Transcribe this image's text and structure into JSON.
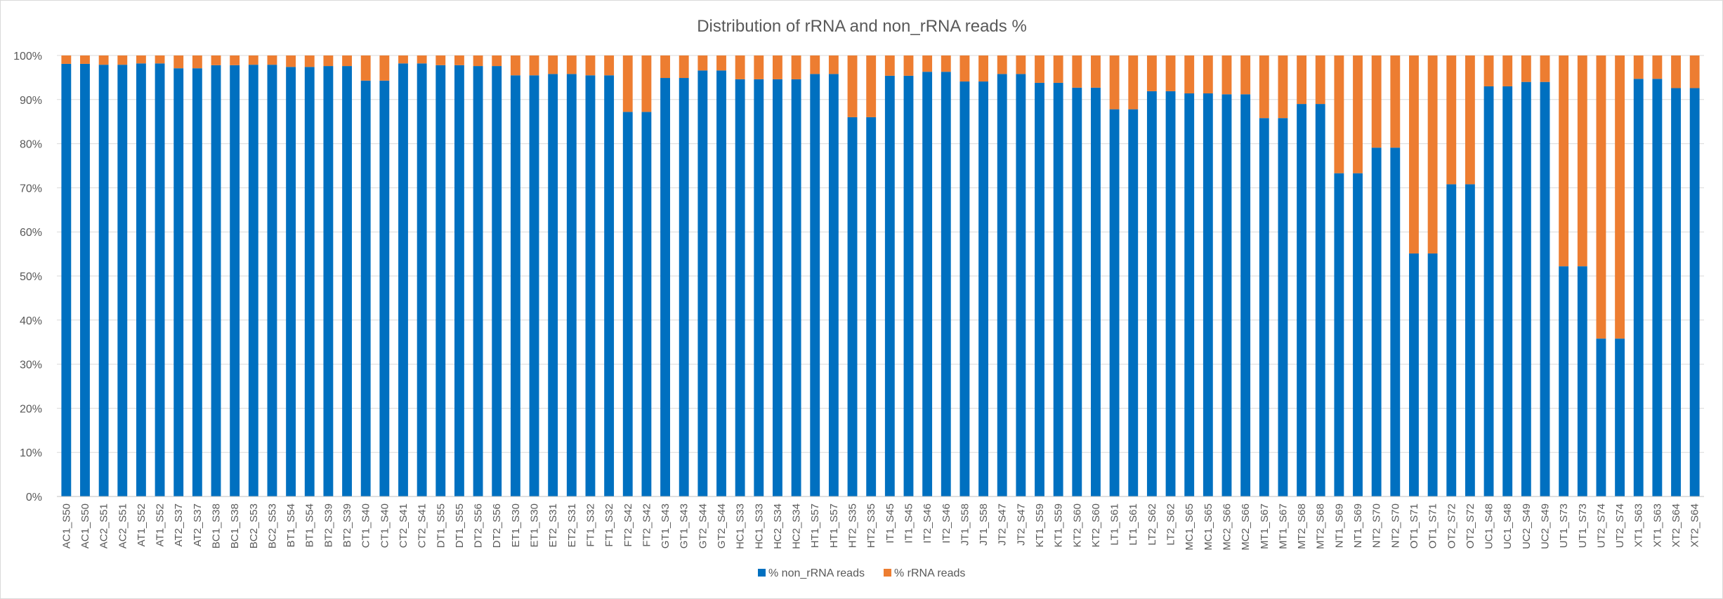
{
  "chart_data": {
    "type": "bar",
    "stacked": true,
    "title": "Distribution of rRNA and non_rRNA reads %",
    "xlabel": "",
    "ylabel": "",
    "ylim": [
      0,
      100
    ],
    "y_tick_labels": [
      "0%",
      "10%",
      "20%",
      "30%",
      "40%",
      "50%",
      "60%",
      "70%",
      "80%",
      "90%",
      "100%"
    ],
    "legend_position": "bottom",
    "grid": true,
    "categories": [
      "AC1_S50",
      "AC1_S50",
      "AC2_S51",
      "AC2_S51",
      "AT1_S52",
      "AT1_S52",
      "AT2_S37",
      "AT2_S37",
      "BC1_S38",
      "BC1_S38",
      "BC2_S53",
      "BC2_S53",
      "BT1_S54",
      "BT1_S54",
      "BT2_S39",
      "BT2_S39",
      "CT1_S40",
      "CT1_S40",
      "CT2_S41",
      "CT2_S41",
      "DT1_S55",
      "DT1_S55",
      "DT2_S56",
      "DT2_S56",
      "ET1_S30",
      "ET1_S30",
      "ET2_S31",
      "ET2_S31",
      "FT1_S32",
      "FT1_S32",
      "FT2_S42",
      "FT2_S42",
      "GT1_S43",
      "GT1_S43",
      "GT2_S44",
      "GT2_S44",
      "HC1_S33",
      "HC1_S33",
      "HC2_S34",
      "HC2_S34",
      "HT1_S57",
      "HT1_S57",
      "HT2_S35",
      "HT2_S35",
      "IT1_S45",
      "IT1_S45",
      "IT2_S46",
      "IT2_S46",
      "JT1_S58",
      "JT1_S58",
      "JT2_S47",
      "JT2_S47",
      "KT1_S59",
      "KT1_S59",
      "KT2_S60",
      "KT2_S60",
      "LT1_S61",
      "LT1_S61",
      "LT2_S62",
      "LT2_S62",
      "MC1_S65",
      "MC1_S65",
      "MC2_S66",
      "MC2_S66",
      "MT1_S67",
      "MT1_S67",
      "MT2_S68",
      "MT2_S68",
      "NT1_S69",
      "NT1_S69",
      "NT2_S70",
      "NT2_S70",
      "OT1_S71",
      "OT1_S71",
      "OT2_S72",
      "OT2_S72",
      "UC1_S48",
      "UC1_S48",
      "UC2_S49",
      "UC2_S49",
      "UT1_S73",
      "UT1_S73",
      "UT2_S74",
      "UT2_S74",
      "XT1_S63",
      "XT1_S63",
      "XT2_S64",
      "XT2_S64"
    ],
    "series": [
      {
        "name": "% non_rRNA reads",
        "color": "#0070c0",
        "values": [
          98.1,
          98.1,
          97.9,
          97.9,
          98.2,
          98.2,
          97.1,
          97.1,
          97.8,
          97.8,
          97.9,
          97.9,
          97.4,
          97.4,
          97.6,
          97.6,
          94.3,
          94.3,
          98.2,
          98.2,
          97.8,
          97.8,
          97.6,
          97.6,
          95.5,
          95.5,
          95.8,
          95.8,
          95.5,
          95.5,
          87.2,
          87.2,
          94.9,
          94.9,
          96.6,
          96.6,
          94.6,
          94.6,
          94.6,
          94.6,
          95.8,
          95.8,
          86.0,
          86.0,
          95.4,
          95.4,
          96.3,
          96.3,
          94.1,
          94.1,
          95.8,
          95.8,
          93.8,
          93.8,
          92.7,
          92.7,
          87.8,
          87.8,
          91.9,
          91.9,
          91.4,
          91.4,
          91.2,
          91.2,
          85.8,
          85.8,
          89.0,
          89.0,
          73.3,
          73.3,
          79.1,
          79.1,
          55.1,
          55.1,
          70.8,
          70.8,
          93.0,
          93.0,
          94.0,
          94.0,
          52.2,
          52.2,
          35.8,
          35.8,
          94.7,
          94.7,
          92.6,
          92.6
        ]
      },
      {
        "name": "% rRNA reads",
        "color": "#ed7d31",
        "values": [
          1.9,
          1.9,
          2.1,
          2.1,
          1.8,
          1.8,
          2.9,
          2.9,
          2.2,
          2.2,
          2.1,
          2.1,
          2.6,
          2.6,
          2.4,
          2.4,
          5.7,
          5.7,
          1.8,
          1.8,
          2.2,
          2.2,
          2.4,
          2.4,
          4.5,
          4.5,
          4.2,
          4.2,
          4.5,
          4.5,
          12.8,
          12.8,
          5.1,
          5.1,
          3.4,
          3.4,
          5.4,
          5.4,
          5.4,
          5.4,
          4.2,
          4.2,
          14.0,
          14.0,
          4.6,
          4.6,
          3.7,
          3.7,
          5.9,
          5.9,
          4.2,
          4.2,
          6.2,
          6.2,
          7.3,
          7.3,
          12.2,
          12.2,
          8.1,
          8.1,
          8.6,
          8.6,
          8.8,
          8.8,
          14.2,
          14.2,
          11.0,
          11.0,
          26.7,
          26.7,
          20.9,
          20.9,
          44.9,
          44.9,
          29.2,
          29.2,
          7.0,
          7.0,
          6.0,
          6.0,
          47.8,
          47.8,
          64.2,
          64.2,
          5.3,
          5.3,
          7.4,
          7.4
        ]
      }
    ]
  }
}
